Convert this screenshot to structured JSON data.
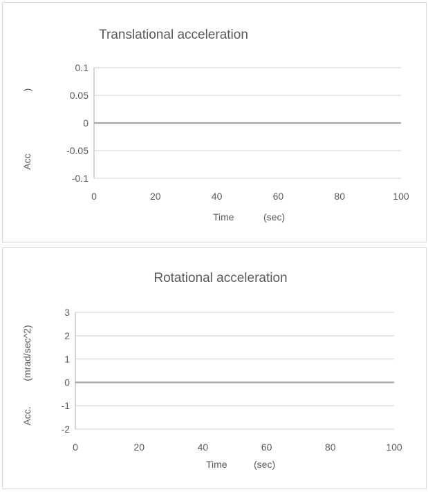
{
  "chart_data": [
    {
      "type": "line",
      "title": "Translational acceleration",
      "xlabel_parts": [
        "Time",
        "(sec)"
      ],
      "ylabel_parts": [
        "Acc",
        ")"
      ],
      "x": [
        0,
        100
      ],
      "series": [
        {
          "values": [
            0,
            0
          ]
        }
      ],
      "xlim": [
        0,
        100
      ],
      "ylim": [
        -0.1,
        0.1
      ],
      "xticks": [
        "0",
        "20",
        "40",
        "60",
        "80",
        "100"
      ],
      "yticks": [
        "0.1",
        "0.05",
        "0",
        "-0.05",
        "-0.1"
      ],
      "grid": true,
      "line_color": "#a6a6a6"
    },
    {
      "type": "line",
      "title": "Rotational acceleration",
      "xlabel_parts": [
        "Time",
        "(sec)"
      ],
      "ylabel_parts": [
        "Acc.",
        "(mrad/sec^2)"
      ],
      "x": [
        0,
        100
      ],
      "series": [
        {
          "values": [
            0,
            0
          ]
        }
      ],
      "xlim": [
        0,
        100
      ],
      "ylim": [
        -2,
        3
      ],
      "xticks": [
        "0",
        "20",
        "40",
        "60",
        "80",
        "100"
      ],
      "yticks": [
        "3",
        "2",
        "1",
        "0",
        "-1",
        "-2"
      ],
      "grid": true,
      "line_color": "#a6a6a6"
    }
  ]
}
